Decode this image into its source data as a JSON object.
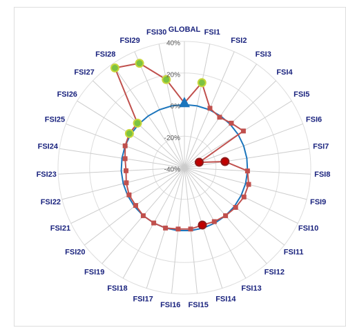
{
  "chart_data": {
    "type": "radar",
    "categories": [
      "GLOBAL",
      "FSI1",
      "FSI2",
      "FSI3",
      "FSI4",
      "FSI5",
      "FSI6",
      "FSI7",
      "FSI8",
      "FSI9",
      "FSI10",
      "FSI11",
      "FSI12",
      "FSI13",
      "FSI14",
      "FSI15",
      "FSI16",
      "FSI17",
      "FSI18",
      "FSI19",
      "FSI20",
      "FSI21",
      "FSI22",
      "FSI23",
      "FSI24",
      "FSI25",
      "FSI26",
      "FSI27",
      "FSI28",
      "FSI29",
      "FSI30"
    ],
    "rlim": [
      -40,
      40
    ],
    "rticks": [
      {
        "value": -40,
        "label": "-40%"
      },
      {
        "value": -20,
        "label": "-20%"
      },
      {
        "value": 0,
        "label": "0%"
      },
      {
        "value": 20,
        "label": "20%"
      },
      {
        "value": 40,
        "label": "40%"
      }
    ],
    "grid": true,
    "series": [
      {
        "color": "#1b75bc",
        "values": [
          0,
          0,
          0,
          0,
          0,
          0,
          0,
          0,
          0,
          0,
          0,
          0,
          0,
          0,
          0,
          0,
          0,
          0,
          0,
          0,
          0,
          0,
          0,
          0,
          0,
          0,
          0,
          0,
          0,
          0,
          0
        ]
      },
      {
        "color": "#c0504d",
        "values": [
          1,
          15,
          1,
          -1,
          1,
          4,
          -30,
          -14,
          0,
          2,
          2,
          1,
          0,
          -1,
          -2,
          -1,
          -1,
          0,
          0,
          0,
          -1,
          -1,
          -2,
          -3,
          -2,
          0,
          1,
          1,
          37,
          32,
          17
        ],
        "markers": [
          "triangle",
          "circle",
          "square",
          "square",
          "square",
          "square",
          "circle",
          "circle",
          "square",
          "square",
          "square",
          "square",
          "square",
          "square",
          "circle",
          "square",
          "square",
          "square",
          "square",
          "square",
          "square",
          "square",
          "square",
          "square",
          "square",
          "square",
          "circle",
          "circle",
          "circle",
          "circle",
          "circle"
        ],
        "marker_colors": [
          "#1b75bc",
          "#7cc242",
          "#c0504d",
          "#c0504d",
          "#c0504d",
          "#c0504d",
          "#c00000",
          "#c00000",
          "#c0504d",
          "#c0504d",
          "#c0504d",
          "#c0504d",
          "#c0504d",
          "#c0504d",
          "#c00000",
          "#c0504d",
          "#c0504d",
          "#c0504d",
          "#c0504d",
          "#c0504d",
          "#c0504d",
          "#c0504d",
          "#c0504d",
          "#c0504d",
          "#c0504d",
          "#c0504d",
          "#7cc242",
          "#7cc242",
          "#7cc242",
          "#7cc242",
          "#7cc242"
        ]
      }
    ]
  }
}
